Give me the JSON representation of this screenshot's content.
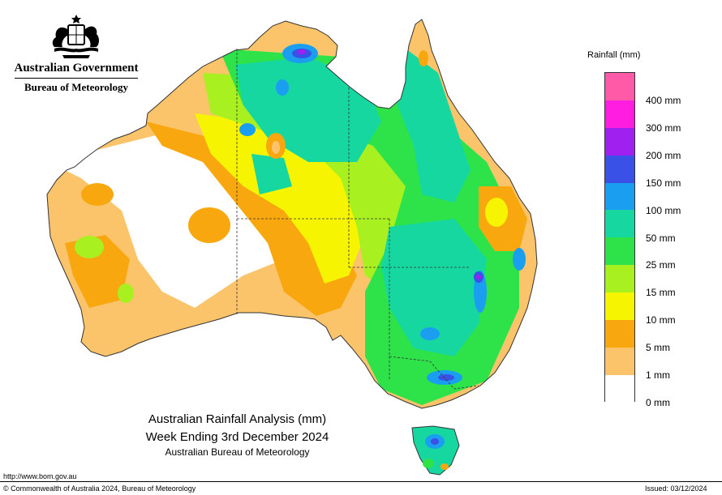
{
  "header": {
    "government": "Australian Government",
    "agency": "Bureau of Meteorology"
  },
  "legend": {
    "title": "Rainfall (mm)",
    "colors": [
      "#ff5aa8",
      "#ff1ee0",
      "#a020f0",
      "#3a50e6",
      "#1a9ef0",
      "#16d7a0",
      "#2ee34a",
      "#a8f020",
      "#f6f400",
      "#f8a80e",
      "#fbc36a",
      "#ffffff"
    ],
    "ticks": [
      "400 mm",
      "300 mm",
      "200 mm",
      "150 mm",
      "100 mm",
      "50 mm",
      "25 mm",
      "15 mm",
      "10 mm",
      "5 mm",
      "1 mm",
      "0 mm"
    ]
  },
  "title": {
    "line1": "Australian Rainfall Analysis (mm)",
    "line2": "Week Ending 3rd December 2024",
    "line3": "Australian Bureau of Meteorology"
  },
  "footer": {
    "url": "http://www.bom.gov.au",
    "copyright": "© Commonwealth of Australia 2024, Bureau of Meteorology",
    "issued": "Issued: 03/12/2024"
  },
  "map_colors": {
    "outline": "#333333",
    "dry": "#ffffff",
    "light": "#fbc36a",
    "moderate": "#f8a80e",
    "mid": "#f6f400",
    "lime": "#a8f020",
    "green": "#2ee34a",
    "teal": "#16d7a0",
    "blue": "#1a9ef0",
    "indigo": "#3a50e6",
    "purple": "#a020f0"
  }
}
